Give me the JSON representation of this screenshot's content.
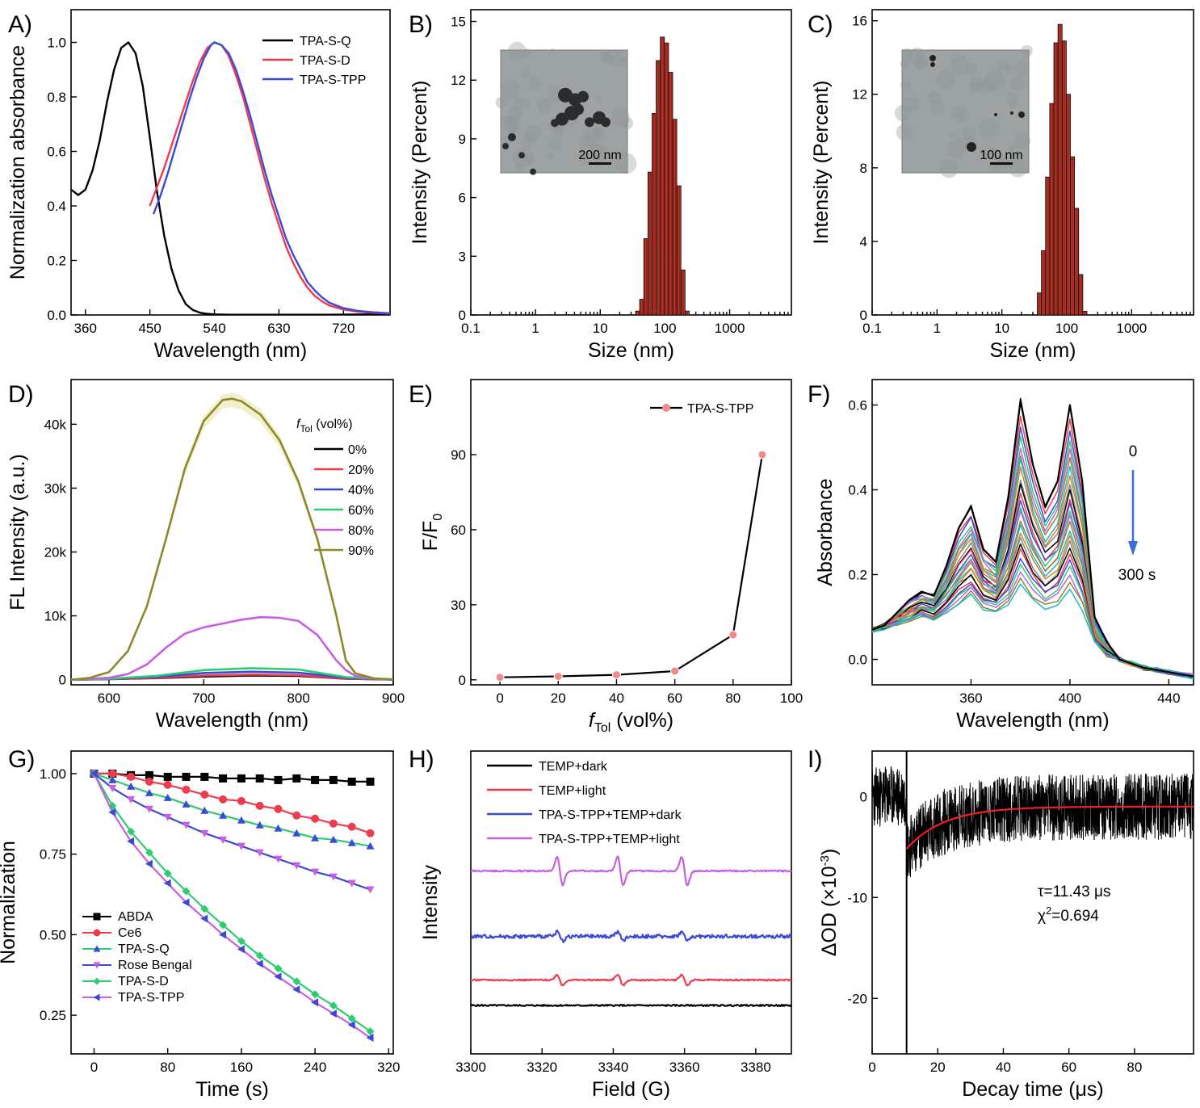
{
  "chart_data": [
    {
      "panel": "A)",
      "type": "line",
      "xlabel": "Wavelength (nm)",
      "ylabel": "Normalization absorbance",
      "xlim": [
        340,
        785
      ],
      "ylim": [
        0,
        1.12
      ],
      "xticks": [
        360,
        450,
        540,
        630,
        720
      ],
      "yticks": [
        0.0,
        0.2,
        0.4,
        0.6,
        0.8,
        1.0
      ],
      "ytick_format": "fixed1",
      "legend_position": "top-right",
      "series": [
        {
          "name": "TPA-S-Q",
          "color": "#000000",
          "x": [
            340,
            350,
            360,
            370,
            380,
            390,
            400,
            410,
            420,
            430,
            440,
            450,
            460,
            470,
            480,
            490,
            500,
            510,
            520,
            530,
            540,
            560,
            600,
            650,
            700,
            750,
            785
          ],
          "y": [
            0.46,
            0.44,
            0.46,
            0.53,
            0.64,
            0.78,
            0.9,
            0.98,
            1.0,
            0.96,
            0.84,
            0.65,
            0.45,
            0.29,
            0.17,
            0.09,
            0.04,
            0.018,
            0.008,
            0.004,
            0.002,
            0.001,
            0.001,
            0.001,
            0.001,
            0.002,
            0.003
          ]
        },
        {
          "name": "TPA-S-D",
          "color": "#ef3b4e",
          "x": [
            450,
            460,
            470,
            480,
            490,
            500,
            510,
            520,
            530,
            540,
            550,
            560,
            570,
            580,
            590,
            600,
            610,
            620,
            630,
            640,
            650,
            660,
            670,
            680,
            690,
            700,
            720,
            740,
            760,
            785
          ],
          "y": [
            0.4,
            0.47,
            0.54,
            0.62,
            0.7,
            0.78,
            0.86,
            0.93,
            0.98,
            1.0,
            0.99,
            0.95,
            0.88,
            0.8,
            0.7,
            0.6,
            0.5,
            0.41,
            0.33,
            0.25,
            0.19,
            0.14,
            0.1,
            0.07,
            0.05,
            0.035,
            0.02,
            0.012,
            0.008,
            0.005
          ]
        },
        {
          "name": "TPA-S-TPP",
          "color": "#3b49d6",
          "x": [
            455,
            465,
            475,
            485,
            495,
            505,
            515,
            525,
            535,
            540,
            550,
            560,
            570,
            580,
            590,
            600,
            610,
            620,
            630,
            640,
            650,
            660,
            670,
            680,
            690,
            700,
            720,
            740,
            760,
            785
          ],
          "y": [
            0.37,
            0.44,
            0.52,
            0.61,
            0.7,
            0.79,
            0.87,
            0.94,
            0.99,
            1.0,
            0.99,
            0.96,
            0.9,
            0.82,
            0.73,
            0.63,
            0.53,
            0.44,
            0.36,
            0.28,
            0.22,
            0.17,
            0.12,
            0.09,
            0.065,
            0.045,
            0.025,
            0.015,
            0.01,
            0.006
          ]
        }
      ]
    },
    {
      "panel": "B)",
      "type": "bar",
      "xscale": "log",
      "xlabel": "Size (nm)",
      "ylabel": "Intensity (Percent)",
      "xlim": [
        0.1,
        9000
      ],
      "ylim": [
        0,
        15.6
      ],
      "xticks": [
        0.1,
        1,
        10,
        100,
        1000
      ],
      "yticks": [
        0,
        3,
        6,
        9,
        12,
        15
      ],
      "bar_color": "#c0392b",
      "x": [
        37.8,
        43.8,
        50.7,
        58.8,
        68.1,
        78.8,
        91.3,
        105.7,
        122.4,
        141.8,
        164.2,
        190.1,
        220.2
      ],
      "values": [
        0.2,
        0.8,
        3.9,
        7.3,
        10.3,
        13.0,
        14.2,
        13.9,
        12.4,
        10.0,
        6.6,
        2.3,
        0.2
      ],
      "inset": {
        "type": "tem-micrograph",
        "scale_bar": "200 nm"
      }
    },
    {
      "panel": "C)",
      "type": "bar",
      "xscale": "log",
      "xlabel": "Size (nm)",
      "ylabel": "Intensity (Percent)",
      "xlim": [
        0.1,
        9000
      ],
      "ylim": [
        0,
        16.6
      ],
      "xticks": [
        0.1,
        1,
        10,
        100,
        1000
      ],
      "yticks": [
        0,
        4,
        8,
        12,
        16
      ],
      "bar_color": "#c0392b",
      "x": [
        37.8,
        43.8,
        50.7,
        58.8,
        68.1,
        78.8,
        91.3,
        105.7,
        122.4,
        141.8,
        164.2,
        190.1
      ],
      "values": [
        1.2,
        3.5,
        7.5,
        11.5,
        14.8,
        15.8,
        14.9,
        12.0,
        8.6,
        5.8,
        2.2,
        0.2
      ],
      "inset": {
        "type": "tem-micrograph",
        "scale_bar": "100 nm"
      }
    },
    {
      "panel": "D)",
      "type": "line",
      "xlabel": "Wavelength (nm)",
      "ylabel": "FL Intensity (a.u.)",
      "xlim": [
        560,
        900
      ],
      "ylim": [
        -800,
        47000
      ],
      "xticks": [
        600,
        700,
        800,
        900
      ],
      "yticks": [
        0,
        10000,
        20000,
        30000,
        40000
      ],
      "ytick_labels": [
        "0",
        "10k",
        "20k",
        "30k",
        "40k"
      ],
      "legend_title": "f",
      "legend_title_sub": "Tol",
      "legend_title_rest": " (vol%)",
      "legend_position": "top-right",
      "series": [
        {
          "name": "0%",
          "color": "#000000",
          "x": [
            560,
            600,
            650,
            700,
            750,
            800,
            850,
            900
          ],
          "y": [
            0,
            80,
            250,
            500,
            650,
            600,
            150,
            20
          ]
        },
        {
          "name": "20%",
          "color": "#ef3b4e",
          "x": [
            560,
            600,
            650,
            700,
            750,
            800,
            850,
            900
          ],
          "y": [
            0,
            100,
            300,
            650,
            800,
            700,
            180,
            20
          ]
        },
        {
          "name": "40%",
          "color": "#3b49d6",
          "x": [
            560,
            600,
            650,
            700,
            750,
            800,
            850,
            900
          ],
          "y": [
            0,
            120,
            450,
            1050,
            1250,
            1100,
            300,
            30
          ]
        },
        {
          "name": "60%",
          "color": "#2ecc71",
          "x": [
            560,
            600,
            650,
            700,
            750,
            800,
            850,
            900
          ],
          "y": [
            0,
            150,
            600,
            1500,
            1800,
            1600,
            400,
            40
          ]
        },
        {
          "name": "80%",
          "color": "#c95ee0",
          "x": [
            560,
            600,
            620,
            640,
            660,
            680,
            700,
            720,
            740,
            760,
            780,
            800,
            820,
            840,
            850,
            860,
            880,
            900
          ],
          "y": [
            0,
            300,
            900,
            2400,
            5000,
            7200,
            8200,
            8800,
            9400,
            9800,
            9700,
            9200,
            7000,
            3000,
            1500,
            600,
            150,
            50
          ]
        },
        {
          "name": "90%",
          "color": "#8a8a2c",
          "x": [
            560,
            580,
            600,
            620,
            640,
            660,
            680,
            700,
            720,
            730,
            740,
            760,
            780,
            800,
            820,
            840,
            850,
            860,
            880,
            900
          ],
          "y": [
            0,
            300,
            1200,
            4500,
            11500,
            22000,
            33000,
            40500,
            43800,
            44000,
            43600,
            41500,
            37500,
            31000,
            22000,
            10000,
            3000,
            1000,
            200,
            50
          ]
        }
      ]
    },
    {
      "panel": "E)",
      "type": "line",
      "xlabel": "f",
      "xlabel_sub": "Tol",
      "xlabel_rest": " (vol%)",
      "ylabel": "F/F",
      "ylabel_sub": "0",
      "xlim": [
        -10,
        100
      ],
      "ylim": [
        -2,
        120
      ],
      "xticks": [
        0,
        20,
        40,
        60,
        80,
        100
      ],
      "yticks": [
        0,
        30,
        60,
        90
      ],
      "legend_position": "top-right",
      "series": [
        {
          "name": "TPA-S-TPP",
          "color": "#000000",
          "marker_color": "#ef8a8a",
          "x": [
            0,
            20,
            40,
            60,
            80,
            90
          ],
          "y": [
            1.0,
            1.4,
            2.0,
            3.5,
            18.0,
            90.0
          ]
        }
      ]
    },
    {
      "panel": "F)",
      "type": "line",
      "xlabel": "Wavelength (nm)",
      "ylabel": "Absorbance",
      "xlim": [
        320,
        450
      ],
      "ylim": [
        -0.06,
        0.66
      ],
      "xticks": [
        360,
        400,
        440
      ],
      "yticks": [
        0.0,
        0.2,
        0.4,
        0.6
      ],
      "ytick_format": "fixed1",
      "annotations": {
        "start": "0",
        "end": "300 s",
        "arrow_color": "#3a6fd8"
      },
      "curve_colors": [
        "#000000",
        "#ef3b4e",
        "#3b49d6",
        "#2ecc71",
        "#c95ee0",
        "#8a8a2c",
        "#1fb5c9",
        "#e67e22",
        "#7f8c8d"
      ],
      "curve_scales": [
        1.0,
        0.93,
        0.88,
        0.83,
        0.79,
        0.75,
        0.72,
        0.68,
        0.64,
        0.6,
        0.57,
        0.54,
        0.51,
        0.48,
        0.45,
        0.42,
        0.39,
        0.36,
        0.33,
        0.3,
        0.27,
        0.24,
        0.21,
        0.18,
        0.15
      ],
      "base_x": [
        320,
        325,
        330,
        335,
        340,
        345,
        350,
        355,
        360,
        365,
        370,
        375,
        380,
        385,
        390,
        395,
        400,
        405,
        410,
        415,
        420,
        425,
        430,
        435,
        440,
        445,
        450
      ],
      "base_y": [
        0.07,
        0.08,
        0.11,
        0.14,
        0.16,
        0.15,
        0.22,
        0.31,
        0.36,
        0.26,
        0.23,
        0.38,
        0.61,
        0.46,
        0.36,
        0.42,
        0.6,
        0.42,
        0.1,
        0.04,
        0.0,
        -0.01,
        -0.02,
        -0.025,
        -0.03,
        -0.035,
        -0.04
      ],
      "attenuated": [
        0.07,
        0.075,
        0.085,
        0.09,
        0.1,
        0.095,
        0.11,
        0.13,
        0.15,
        0.12,
        0.115,
        0.13,
        0.18,
        0.14,
        0.12,
        0.13,
        0.17,
        0.12,
        0.04,
        0.01,
        0.0,
        -0.01,
        -0.02,
        -0.025,
        -0.03,
        -0.035,
        -0.04
      ]
    },
    {
      "panel": "G)",
      "type": "line",
      "xlabel": "Time (s)",
      "ylabel": "Normalization",
      "xlim": [
        -25,
        325
      ],
      "ylim": [
        0.13,
        1.07
      ],
      "xticks": [
        0,
        80,
        160,
        240,
        320
      ],
      "yticks": [
        0.25,
        0.5,
        0.75,
        1.0
      ],
      "ytick_format": "fixed2",
      "legend_position": "bottom-left",
      "series": [
        {
          "name": "ABDA",
          "color": "#000000",
          "marker": "square",
          "x": [
            0,
            20,
            40,
            60,
            80,
            100,
            120,
            140,
            160,
            180,
            200,
            220,
            240,
            260,
            280,
            300
          ],
          "y": [
            1.0,
            1.0,
            0.995,
            0.995,
            0.99,
            0.99,
            0.99,
            0.985,
            0.985,
            0.985,
            0.98,
            0.985,
            0.98,
            0.98,
            0.975,
            0.975
          ]
        },
        {
          "name": "Ce6",
          "color": "#ef3b4e",
          "marker": "circle",
          "x": [
            0,
            20,
            40,
            60,
            80,
            100,
            120,
            140,
            160,
            180,
            200,
            220,
            240,
            260,
            280,
            300
          ],
          "y": [
            1.0,
            1.0,
            0.99,
            0.975,
            0.965,
            0.95,
            0.935,
            0.92,
            0.915,
            0.9,
            0.89,
            0.87,
            0.86,
            0.845,
            0.835,
            0.815
          ]
        },
        {
          "name": "TPA-S-Q",
          "color": "#3b49d6",
          "marker": "triangle-up",
          "x": [
            0,
            20,
            40,
            60,
            80,
            100,
            120,
            140,
            160,
            180,
            200,
            220,
            240,
            260,
            280,
            300
          ],
          "y": [
            1.0,
            0.98,
            0.96,
            0.94,
            0.925,
            0.905,
            0.885,
            0.87,
            0.855,
            0.84,
            0.83,
            0.815,
            0.8,
            0.795,
            0.785,
            0.775
          ],
          "line_color": "#2ecc71"
        },
        {
          "name": "Rose Bengal",
          "color": "#c95ee0",
          "marker": "triangle-down",
          "x": [
            0,
            20,
            40,
            60,
            80,
            100,
            120,
            140,
            160,
            180,
            200,
            220,
            240,
            260,
            280,
            300
          ],
          "y": [
            1.0,
            0.955,
            0.92,
            0.89,
            0.865,
            0.84,
            0.815,
            0.795,
            0.775,
            0.755,
            0.735,
            0.715,
            0.695,
            0.68,
            0.66,
            0.64
          ],
          "line_color": "#3b49d6"
        },
        {
          "name": "TPA-S-D",
          "color": "#2ecc71",
          "marker": "diamond",
          "x": [
            0,
            20,
            40,
            60,
            80,
            100,
            120,
            140,
            160,
            180,
            200,
            220,
            240,
            260,
            280,
            300
          ],
          "y": [
            1.0,
            0.9,
            0.82,
            0.755,
            0.69,
            0.635,
            0.58,
            0.53,
            0.48,
            0.435,
            0.395,
            0.355,
            0.315,
            0.28,
            0.24,
            0.2
          ]
        },
        {
          "name": "TPA-S-TPP",
          "color": "#3b49d6",
          "marker": "triangle-left",
          "x": [
            0,
            20,
            40,
            60,
            80,
            100,
            120,
            140,
            160,
            180,
            200,
            220,
            240,
            260,
            280,
            300
          ],
          "y": [
            1.0,
            0.88,
            0.79,
            0.72,
            0.66,
            0.6,
            0.55,
            0.5,
            0.455,
            0.41,
            0.37,
            0.33,
            0.29,
            0.255,
            0.22,
            0.18
          ],
          "line_color": "#c95ee0"
        }
      ]
    },
    {
      "panel": "H)",
      "type": "line",
      "xlabel": "Field (G)",
      "ylabel": "Intensity",
      "xlim": [
        3300,
        3390
      ],
      "xticks": [
        3300,
        3320,
        3340,
        3360,
        3380
      ],
      "yticks": [],
      "legend_position": "top-left",
      "peak_fields": [
        3325,
        3342,
        3360
      ],
      "series": [
        {
          "name": "TEMP+dark",
          "color": "#000000",
          "offset": 0.0,
          "amplitude": 0.0
        },
        {
          "name": "TEMP+light",
          "color": "#ef3b4e",
          "offset": 0.35,
          "amplitude": 0.6
        },
        {
          "name": "TPA-S-TPP+TEMP+dark",
          "color": "#3b49d6",
          "offset": 0.95,
          "amplitude": 0.5
        },
        {
          "name": "TPA-S-TPP+TEMP+light",
          "color": "#c95ee0",
          "offset": 1.85,
          "amplitude": 1.6
        }
      ]
    },
    {
      "panel": "I)",
      "type": "line",
      "xlabel": "Decay time (μs)",
      "ylabel": "ΔOD (×10",
      "ylabel_sup": "-3",
      "ylabel_end": ")",
      "xlim": [
        0,
        98
      ],
      "ylim": [
        -25.5,
        4.5
      ],
      "xticks": [
        0,
        20,
        40,
        60,
        80
      ],
      "yticks": [
        -20,
        -10,
        0
      ],
      "annotations": {
        "tau": "τ=11.43 μs",
        "chi_prefix": "χ",
        "chi_sup": "2",
        "chi_value": "=0.694"
      },
      "series": [
        {
          "name": "data",
          "color": "#000000",
          "noise": true
        },
        {
          "name": "fit",
          "color": "#ef2020",
          "t0": 10.5,
          "A": -5.2,
          "c": -1.0,
          "tau": 11.43
        }
      ]
    }
  ]
}
